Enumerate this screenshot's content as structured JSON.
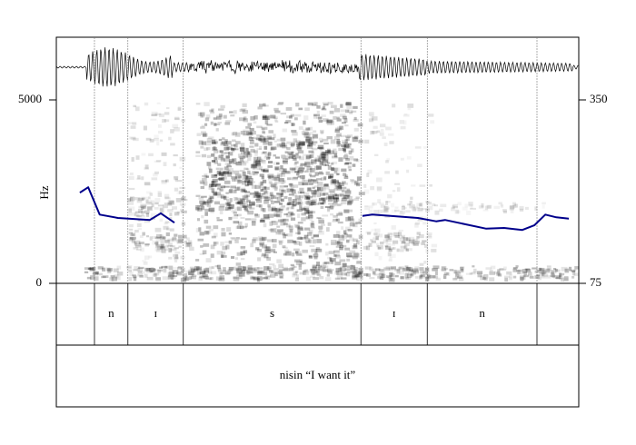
{
  "chart_data": {
    "type": "spectrogram",
    "y_label": "Hz",
    "ylim": [
      0,
      5000
    ],
    "yticks": [
      0,
      5000
    ],
    "y2lim": [
      75,
      350
    ],
    "y2ticks": [
      75,
      350
    ],
    "xlim": [
      0,
      1
    ],
    "x": [
      0.045,
      0.061,
      0.083,
      0.118,
      0.179,
      0.2,
      0.226,
      0.4,
      0.586,
      0.605,
      0.692,
      0.727,
      0.744,
      0.823,
      0.857,
      0.892,
      0.915,
      0.936,
      0.957,
      0.981
    ],
    "series": [
      {
        "name": "pitch",
        "color": "#00008b",
        "axis": "y2",
        "values": [
          211,
          219,
          178,
          173,
          170,
          180,
          166,
          null,
          176,
          178,
          173,
          168,
          170,
          157,
          158,
          155,
          162,
          178,
          174,
          172
        ]
      }
    ],
    "tiers": [
      {
        "intervals": [
          {
            "label": null,
            "start": 0,
            "end": 0.073
          },
          {
            "label": "n",
            "start": 0.073,
            "end": 0.137
          },
          {
            "label": "ɪ",
            "start": 0.137,
            "end": 0.243
          },
          {
            "label": "s",
            "start": 0.243,
            "end": 0.583
          },
          {
            "label": "ɪ",
            "start": 0.583,
            "end": 0.71
          },
          {
            "label": "n",
            "start": 0.71,
            "end": 0.92
          },
          {
            "label": null,
            "start": 0.92,
            "end": 1
          }
        ]
      },
      {
        "intervals": [
          {
            "label": "nisin “I want it”",
            "start": 0,
            "end": 1
          }
        ]
      }
    ]
  }
}
